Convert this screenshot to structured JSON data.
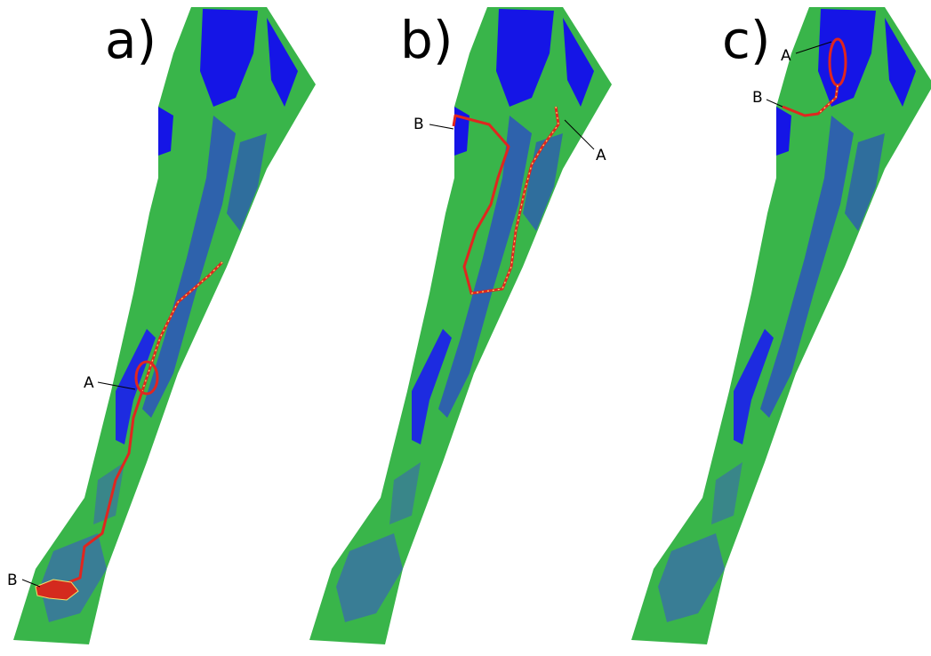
{
  "panels": [
    {
      "label": "a)",
      "markers": {
        "start": "A",
        "end": "B"
      }
    },
    {
      "label": "b)",
      "markers": {
        "start": "A",
        "end": "B"
      }
    },
    {
      "label": "c)",
      "markers": {
        "start": "A",
        "end": "B"
      }
    }
  ]
}
